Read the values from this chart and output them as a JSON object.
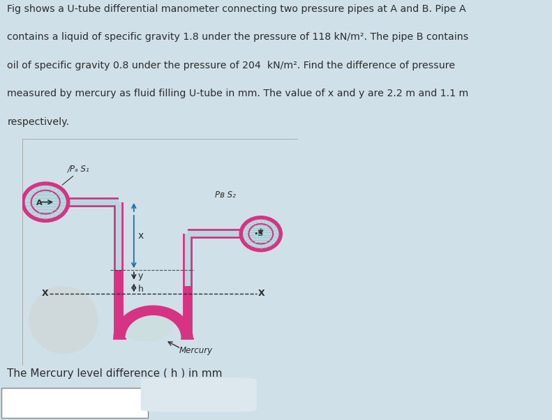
{
  "bg_color": "#cfe0e8",
  "diagram_bg": "#ffffff",
  "pipe_color": "#d63384",
  "liquid_color": "#b8d8e0",
  "mercury_color": "#d63384",
  "hatch_color": "#9fc8d0",
  "text_color": "#2c2c2c",
  "arrow_color_x": "#1a6fa8",
  "title_lines": [
    "Fig shows a U-tube differential manometer connecting two pressure pipes at A and B. Pipe A",
    "contains a liquid of specific gravity 1.8 under the pressure of 118 kN/m². The pipe B contains",
    "oil of specific gravity 0.8 under the pressure of 204  kN/m². Find the difference of pressure",
    "measured by mercury as fluid filling U-tube in mm. The value of x and y are 2.2 m and 1.1 m",
    "respectively."
  ],
  "label_pa_s1": "/Pₐ S₁",
  "label_pb_s2": "Pʙ S₂",
  "label_mercury": "Mercury",
  "label_A": "A",
  "label_B": "•B",
  "label_x": "x",
  "label_y": "y",
  "label_h": "h",
  "bottom_label": "The Mercury level difference ( h ) in mm"
}
